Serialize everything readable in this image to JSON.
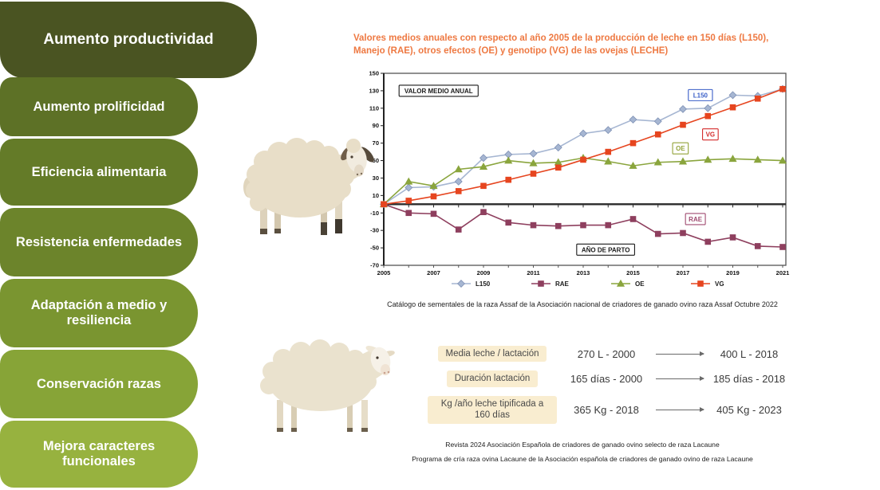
{
  "sidebar": {
    "items": [
      {
        "label": "Aumento productividad",
        "color": "#4a5422"
      },
      {
        "label": "Aumento prolificidad",
        "color": "#5d7126"
      },
      {
        "label": "Eficiencia alimentaria",
        "color": "#647b28"
      },
      {
        "label": "Resistencia enfermedades",
        "color": "#6c842b"
      },
      {
        "label": "Adaptación a medio y resiliencia",
        "color": "#7a9530"
      },
      {
        "label": "Conservación razas",
        "color": "#87a437"
      },
      {
        "label": "Mejora caracteres funcionales",
        "color": "#97b23f"
      }
    ]
  },
  "chart": {
    "title": "Valores medios anuales con respecto al año 2005 de la producción de leche en 150 días (L150), Manejo (RAE), otros efectos (OE) y genotipo (VG) de las ovejas (LECHE)",
    "title_line1": "Valores medios anuales con respecto al año 2005 de la producción de leche en 150 días (L150),",
    "title_line2": "Manejo (RAE), otros efectos (OE) y genotipo (VG) de las ovejas (LECHE)",
    "title_color": "#ee7942",
    "caption": "Catálogo de sementales de la raza Assaf de la Asociación nacional de criadores de ganado ovino raza Assaf Octubre 2022"
  },
  "chart_data": {
    "type": "line",
    "x": [
      2005,
      2006,
      2007,
      2008,
      2009,
      2010,
      2011,
      2012,
      2013,
      2014,
      2015,
      2016,
      2017,
      2018,
      2019,
      2020,
      2021
    ],
    "series": [
      {
        "name": "L150",
        "color": "#a6b6d2",
        "edge": "#7e90b4",
        "marker": "diamond",
        "values": [
          0,
          19,
          20,
          26,
          53,
          57,
          58,
          65,
          81,
          85,
          97,
          95,
          109,
          110,
          125,
          124,
          132
        ]
      },
      {
        "name": "RAE",
        "color": "#8e3f5e",
        "edge": "#8e3f5e",
        "marker": "square",
        "values": [
          0,
          -10,
          -11,
          -29,
          -9,
          -21,
          -24,
          -25,
          -24,
          -24,
          -17,
          -34,
          -33,
          -43,
          -38,
          -48,
          -49
        ]
      },
      {
        "name": "OE",
        "color": "#8aa53d",
        "edge": "#8aa53d",
        "marker": "triangle",
        "values": [
          0,
          26,
          21,
          40,
          43,
          50,
          47,
          48,
          53,
          49,
          44,
          48,
          49,
          51,
          52,
          51,
          50
        ]
      },
      {
        "name": "VG",
        "color": "#e6451f",
        "edge": "#e6451f",
        "marker": "square",
        "values": [
          0,
          4,
          9,
          15,
          21,
          28,
          35,
          42,
          51,
          60,
          70,
          80,
          91,
          101,
          111,
          121,
          132
        ]
      }
    ],
    "ylim": [
      -70,
      150
    ],
    "ytick_step": 20,
    "xticks_labeled": [
      2005,
      2007,
      2009,
      2011,
      2013,
      2015,
      2017,
      2019,
      2021
    ],
    "grid": false,
    "legend_position": "bottom",
    "annotations": [
      {
        "text": "VALOR MEDIO ANUAL",
        "x": 2007.2,
        "y": 130,
        "color": "#1a1a1a"
      },
      {
        "text": "L150",
        "x": 2017.7,
        "y": 125,
        "color": "#3a5fc8"
      },
      {
        "text": "VG",
        "x": 2018.1,
        "y": 80,
        "color": "#d42b2b"
      },
      {
        "text": "OE",
        "x": 2016.9,
        "y": 64,
        "color": "#93a33a"
      },
      {
        "text": "RAE",
        "x": 2017.5,
        "y": -17,
        "color": "#a04b70"
      },
      {
        "text": "AÑO DE PARTO",
        "x": 2013.9,
        "y": -52,
        "color": "#1a1a1a"
      }
    ]
  },
  "table": {
    "label_bg": "#f9edd0",
    "rows": [
      {
        "label": "Media leche / lactación",
        "from": "270 L - 2000",
        "to": "400 L - 2018"
      },
      {
        "label": "Duración lactación",
        "from": "165 días - 2000",
        "to": "185 días - 2018"
      },
      {
        "label": "Kg /año leche tipificada a 160 días",
        "from": "365 Kg - 2018",
        "to": "405 Kg - 2023"
      }
    ]
  },
  "footnotes": [
    "Revista 2024 Asociación Española de criadores de ganado ovino selecto de raza Lacaune",
    "Programa de cría raza ovina Lacaune de la Asociación española de criadores de ganado ovino de raza Lacaune"
  ]
}
